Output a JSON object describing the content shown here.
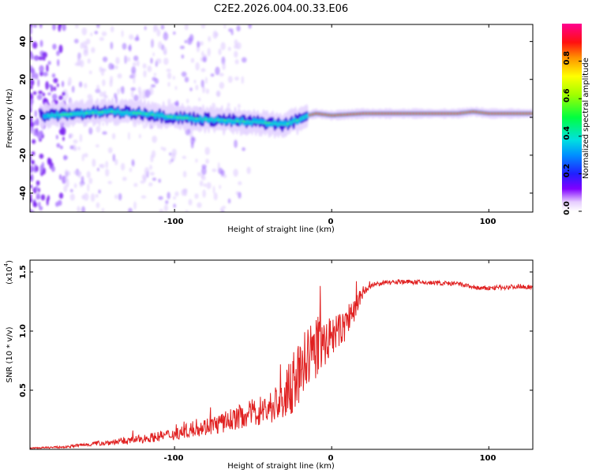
{
  "title": "C2E2.2026.004.00.33.E06",
  "chart_data": [
    {
      "type": "heatmap",
      "xlabel": "Height of straight line (km)",
      "ylabel": "Frequency (Hz)",
      "xlim": [
        -192,
        128
      ],
      "ylim": [
        -50,
        49
      ],
      "x_ticks": [
        -100,
        0,
        100
      ],
      "x_tick_labels": [
        "-100",
        "0",
        "100"
      ],
      "y_ticks": [
        40,
        20,
        0,
        -20,
        -40
      ],
      "y_tick_labels": [
        "40",
        "20",
        "0",
        "-20",
        "-40"
      ],
      "colorbar": {
        "label": "Normalized spectral amplitude",
        "range": [
          0,
          1
        ],
        "ticks": [
          0,
          0.2,
          0.4,
          0.6,
          0.8
        ],
        "tick_labels": [
          "0.0",
          "0.2",
          "0.4",
          "0.6",
          "0.8"
        ]
      },
      "ridge": {
        "x": [
          -180,
          -160,
          -140,
          -120,
          -100,
          -80,
          -60,
          -40,
          -30,
          -20,
          -15,
          -10,
          0,
          20,
          40,
          60,
          80,
          90,
          100,
          128
        ],
        "frequency": [
          1,
          2,
          3,
          2,
          0,
          -1,
          -2,
          -3,
          -4,
          -1,
          1,
          2,
          1,
          2,
          2,
          2,
          2,
          3,
          2,
          2
        ]
      }
    },
    {
      "type": "line",
      "xlabel": "Height of straight line (km)",
      "ylabel": "SNR (10 * v/v)",
      "y_multiplier": "(x10",
      "y_multiplier_exp": "4",
      "xlim": [
        -192,
        128
      ],
      "ylim": [
        0,
        1.6
      ],
      "x_ticks": [
        -100,
        0,
        100
      ],
      "x_tick_labels": [
        "-100",
        "0",
        "100"
      ],
      "y_ticks": [
        1.5,
        1.0,
        0.5
      ],
      "y_tick_labels": [
        "1.5",
        "1.0",
        "0.5"
      ],
      "series": [
        {
          "name": "SNR",
          "color": "#e02020",
          "x": [
            -192,
            -170,
            -150,
            -130,
            -115,
            -100,
            -85,
            -70,
            -60,
            -50,
            -40,
            -30,
            -25,
            -20,
            -15,
            -10,
            -5,
            0,
            5,
            10,
            15,
            20,
            25,
            30,
            40,
            60,
            80,
            95,
            110,
            120,
            128
          ],
          "y": [
            0.01,
            0.02,
            0.05,
            0.07,
            0.1,
            0.13,
            0.18,
            0.22,
            0.27,
            0.31,
            0.35,
            0.42,
            0.55,
            0.65,
            0.78,
            0.85,
            0.9,
            0.95,
            1.0,
            1.08,
            1.2,
            1.33,
            1.38,
            1.4,
            1.42,
            1.41,
            1.4,
            1.36,
            1.37,
            1.38,
            1.37
          ],
          "noise": [
            0.005,
            0.01,
            0.02,
            0.03,
            0.04,
            0.05,
            0.07,
            0.09,
            0.1,
            0.12,
            0.14,
            0.2,
            0.25,
            0.3,
            0.28,
            0.25,
            0.2,
            0.18,
            0.15,
            0.15,
            0.12,
            0.05,
            0.03,
            0.02,
            0.02,
            0.02,
            0.02,
            0.02,
            0.02,
            0.02,
            0.02
          ]
        }
      ]
    }
  ]
}
